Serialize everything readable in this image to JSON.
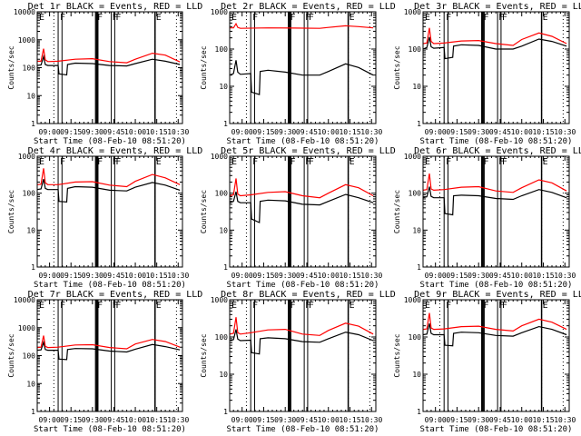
{
  "colors": {
    "events": "#000000",
    "lld": "#ff0000",
    "background": "#ffffff"
  },
  "chart_data": [
    {
      "type": "line",
      "detector": "1r",
      "title": "Det 1r BLACK = Events, RED = LLD",
      "xlabel": "Start Time (08-Feb-10 08:51:20)",
      "ylabel": "Counts/sec",
      "yscale": "log",
      "ylim": [
        1,
        10000
      ],
      "ytick_labels": [
        "1",
        "10",
        "100",
        "1000",
        "10000"
      ],
      "xlim_hours": [
        8.856,
        10.55
      ],
      "xtick_labels": [
        "09:00",
        "09:15",
        "09:30",
        "09:45",
        "10:00",
        "10:15",
        "10:30"
      ],
      "series": [
        {
          "name": "Events",
          "color": "black",
          "x_hours": [
            8.856,
            8.9,
            8.93,
            8.95,
            8.98,
            9.1,
            9.11,
            9.2,
            9.21,
            9.3,
            9.5,
            9.7,
            9.9,
            10.0,
            10.2,
            10.35,
            10.52
          ],
          "values": [
            120,
            125,
            250,
            130,
            120,
            120,
            60,
            55,
            130,
            145,
            140,
            120,
            115,
            140,
            200,
            170,
            130
          ]
        },
        {
          "name": "LLD",
          "color": "red",
          "x_hours": [
            8.856,
            8.9,
            8.93,
            8.95,
            8.98,
            9.1,
            9.3,
            9.5,
            9.7,
            9.9,
            10.0,
            10.2,
            10.35,
            10.52
          ],
          "values": [
            170,
            170,
            480,
            190,
            165,
            170,
            200,
            210,
            165,
            150,
            200,
            330,
            280,
            160
          ]
        }
      ]
    },
    {
      "type": "line",
      "detector": "2r",
      "title": "Det 2r BLACK = Events, RED = LLD",
      "xlabel": "Start Time (08-Feb-10 08:51:20)",
      "ylabel": "Counts/sec",
      "yscale": "log",
      "ylim": [
        1,
        1000
      ],
      "ytick_labels": [
        "1",
        "10",
        "100",
        "1000"
      ],
      "xlim_hours": [
        8.856,
        10.55
      ],
      "xtick_labels": [
        "09:00",
        "09:15",
        "09:30",
        "09:45",
        "10:00",
        "10:15",
        "10:30"
      ],
      "series": [
        {
          "name": "Events",
          "color": "black",
          "x_hours": [
            8.856,
            8.9,
            8.93,
            8.95,
            8.98,
            9.1,
            9.11,
            9.2,
            9.21,
            9.3,
            9.5,
            9.7,
            9.9,
            10.0,
            10.2,
            10.35,
            10.52
          ],
          "values": [
            20,
            22,
            50,
            24,
            21,
            22,
            7,
            6,
            25,
            27,
            24,
            20,
            20,
            25,
            40,
            32,
            20
          ]
        },
        {
          "name": "LLD",
          "color": "red",
          "x_hours": [
            8.856,
            8.9,
            8.93,
            8.95,
            8.98,
            9.3,
            9.6,
            9.9,
            10.0,
            10.2,
            10.35,
            10.52
          ],
          "values": [
            370,
            370,
            480,
            380,
            360,
            370,
            365,
            360,
            380,
            420,
            400,
            370
          ]
        }
      ]
    },
    {
      "type": "line",
      "detector": "3r",
      "title": "Det 3r BLACK = Events, RED = LLD",
      "xlabel": "Start Time (08-Feb-10 08:51:20)",
      "ylabel": "Counts/sec",
      "yscale": "log",
      "ylim": [
        1,
        1000
      ],
      "ytick_labels": [
        "1",
        "10",
        "100",
        "1000"
      ],
      "xlim_hours": [
        8.856,
        10.55
      ],
      "xtick_labels": [
        "09:00",
        "09:15",
        "09:30",
        "09:45",
        "10:00",
        "10:15",
        "10:30"
      ],
      "series": [
        {
          "name": "Events",
          "color": "black",
          "x_hours": [
            8.856,
            8.9,
            8.93,
            8.95,
            8.98,
            9.1,
            9.11,
            9.2,
            9.21,
            9.3,
            9.5,
            9.7,
            9.9,
            10.0,
            10.2,
            10.35,
            10.52
          ],
          "values": [
            100,
            110,
            210,
            115,
            105,
            110,
            55,
            60,
            120,
            130,
            125,
            100,
            100,
            120,
            185,
            160,
            120
          ]
        },
        {
          "name": "LLD",
          "color": "red",
          "x_hours": [
            8.856,
            8.9,
            8.93,
            8.95,
            8.98,
            9.1,
            9.3,
            9.5,
            9.7,
            9.9,
            10.0,
            10.2,
            10.35,
            10.52
          ],
          "values": [
            140,
            145,
            370,
            160,
            140,
            145,
            165,
            170,
            140,
            125,
            180,
            270,
            220,
            140
          ]
        }
      ]
    },
    {
      "type": "line",
      "detector": "4r",
      "title": "Det 4r BLACK = Events, RED = LLD",
      "xlabel": "Start Time (08-Feb-10 08:51:20)",
      "ylabel": "Counts/sec",
      "yscale": "log",
      "ylim": [
        1,
        1000
      ],
      "ytick_labels": [
        "1",
        "10",
        "100",
        "1000"
      ],
      "xlim_hours": [
        8.856,
        10.55
      ],
      "xtick_labels": [
        "09:00",
        "09:15",
        "09:30",
        "09:45",
        "10:00",
        "10:15",
        "10:30"
      ],
      "series": [
        {
          "name": "Events",
          "color": "black",
          "x_hours": [
            8.856,
            8.9,
            8.93,
            8.95,
            8.98,
            9.1,
            9.11,
            9.2,
            9.21,
            9.3,
            9.5,
            9.7,
            9.9,
            10.0,
            10.2,
            10.35,
            10.52
          ],
          "values": [
            125,
            130,
            240,
            135,
            125,
            125,
            60,
            58,
            135,
            150,
            145,
            120,
            115,
            145,
            195,
            165,
            120
          ]
        },
        {
          "name": "LLD",
          "color": "red",
          "x_hours": [
            8.856,
            8.9,
            8.93,
            8.95,
            8.98,
            9.1,
            9.3,
            9.5,
            9.7,
            9.9,
            10.0,
            10.2,
            10.35,
            10.52
          ],
          "values": [
            170,
            175,
            470,
            190,
            170,
            170,
            200,
            205,
            165,
            150,
            210,
            320,
            260,
            170
          ]
        }
      ]
    },
    {
      "type": "line",
      "detector": "5r",
      "title": "Det 5r BLACK = Events, RED = LLD",
      "xlabel": "Start Time (08-Feb-10 08:51:20)",
      "ylabel": "Counts/sec",
      "yscale": "log",
      "ylim": [
        1,
        1000
      ],
      "ytick_labels": [
        "1",
        "10",
        "100",
        "1000"
      ],
      "xlim_hours": [
        8.856,
        10.55
      ],
      "xtick_labels": [
        "09:00",
        "09:15",
        "09:30",
        "09:45",
        "10:00",
        "10:15",
        "10:30"
      ],
      "series": [
        {
          "name": "Events",
          "color": "black",
          "x_hours": [
            8.856,
            8.9,
            8.93,
            8.95,
            8.98,
            9.1,
            9.11,
            9.2,
            9.21,
            9.3,
            9.5,
            9.7,
            9.9,
            10.0,
            10.2,
            10.35,
            10.52
          ],
          "values": [
            55,
            60,
            110,
            60,
            55,
            55,
            20,
            16,
            60,
            65,
            62,
            50,
            48,
            60,
            92,
            75,
            55
          ]
        },
        {
          "name": "LLD",
          "color": "red",
          "x_hours": [
            8.856,
            8.9,
            8.93,
            8.95,
            8.98,
            9.1,
            9.3,
            9.5,
            9.7,
            9.9,
            10.0,
            10.2,
            10.35,
            10.52
          ],
          "values": [
            85,
            90,
            250,
            95,
            85,
            90,
            105,
            110,
            85,
            75,
            100,
            170,
            140,
            85
          ]
        }
      ]
    },
    {
      "type": "line",
      "detector": "6r",
      "title": "Det 6r BLACK = Events, RED = LLD",
      "xlabel": "Start Time (08-Feb-10 08:51:20)",
      "ylabel": "Counts/sec",
      "yscale": "log",
      "ylim": [
        1,
        1000
      ],
      "ytick_labels": [
        "1",
        "10",
        "100",
        "1000"
      ],
      "xlim_hours": [
        8.856,
        10.55
      ],
      "xtick_labels": [
        "09:00",
        "09:15",
        "09:30",
        "09:45",
        "10:00",
        "10:15",
        "10:30"
      ],
      "series": [
        {
          "name": "Events",
          "color": "black",
          "x_hours": [
            8.856,
            8.9,
            8.93,
            8.95,
            8.98,
            9.1,
            9.11,
            9.2,
            9.21,
            9.3,
            9.5,
            9.7,
            9.9,
            10.0,
            10.2,
            10.35,
            10.52
          ],
          "values": [
            75,
            80,
            150,
            82,
            75,
            75,
            28,
            26,
            85,
            88,
            85,
            72,
            68,
            85,
            125,
            105,
            75
          ]
        },
        {
          "name": "LLD",
          "color": "red",
          "x_hours": [
            8.856,
            8.9,
            8.93,
            8.95,
            8.98,
            9.1,
            9.3,
            9.5,
            9.7,
            9.9,
            10.0,
            10.2,
            10.35,
            10.52
          ],
          "values": [
            120,
            125,
            340,
            130,
            120,
            125,
            145,
            150,
            115,
            105,
            140,
            230,
            190,
            115
          ]
        }
      ]
    },
    {
      "type": "line",
      "detector": "7r",
      "title": "Det 7r BLACK = Events, RED = LLD",
      "xlabel": "Start Time (08-Feb-10 08:51:20)",
      "ylabel": "Counts/sec",
      "yscale": "log",
      "ylim": [
        1,
        10000
      ],
      "ytick_labels": [
        "1",
        "10",
        "100",
        "1000",
        "10000"
      ],
      "xlim_hours": [
        8.856,
        10.55
      ],
      "xtick_labels": [
        "09:00",
        "09:15",
        "09:30",
        "09:45",
        "10:00",
        "10:15",
        "10:30"
      ],
      "series": [
        {
          "name": "Events",
          "color": "black",
          "x_hours": [
            8.856,
            8.9,
            8.93,
            8.95,
            8.98,
            9.1,
            9.11,
            9.2,
            9.21,
            9.3,
            9.5,
            9.7,
            9.9,
            10.0,
            10.2,
            10.35,
            10.52
          ],
          "values": [
            155,
            160,
            300,
            165,
            155,
            155,
            75,
            72,
            165,
            180,
            175,
            145,
            135,
            170,
            250,
            210,
            160
          ]
        },
        {
          "name": "LLD",
          "color": "red",
          "x_hours": [
            8.856,
            8.9,
            8.93,
            8.95,
            8.98,
            9.1,
            9.3,
            9.5,
            9.7,
            9.9,
            10.0,
            10.2,
            10.35,
            10.52
          ],
          "values": [
            195,
            200,
            520,
            215,
            195,
            200,
            240,
            245,
            195,
            175,
            260,
            380,
            320,
            200
          ]
        }
      ]
    },
    {
      "type": "line",
      "detector": "8r",
      "title": "Det 8r BLACK = Events, RED = LLD",
      "xlabel": "Start Time (08-Feb-10 08:51:20)",
      "ylabel": "Counts/sec",
      "yscale": "log",
      "ylim": [
        1,
        1000
      ],
      "ytick_labels": [
        "1",
        "10",
        "100",
        "1000"
      ],
      "xlim_hours": [
        8.856,
        10.55
      ],
      "xtick_labels": [
        "09:00",
        "09:15",
        "09:30",
        "09:45",
        "10:00",
        "10:15",
        "10:30"
      ],
      "series": [
        {
          "name": "Events",
          "color": "black",
          "x_hours": [
            8.856,
            8.9,
            8.93,
            8.95,
            8.98,
            9.1,
            9.11,
            9.2,
            9.21,
            9.3,
            9.5,
            9.7,
            9.9,
            10.0,
            10.2,
            10.35,
            10.52
          ],
          "values": [
            80,
            85,
            160,
            88,
            80,
            82,
            38,
            35,
            90,
            95,
            90,
            75,
            72,
            90,
            135,
            115,
            80
          ]
        },
        {
          "name": "LLD",
          "color": "red",
          "x_hours": [
            8.856,
            8.9,
            8.93,
            8.95,
            8.98,
            9.1,
            9.3,
            9.5,
            9.7,
            9.9,
            10.0,
            10.2,
            10.35,
            10.52
          ],
          "values": [
            120,
            125,
            340,
            130,
            120,
            130,
            155,
            160,
            120,
            110,
            150,
            235,
            195,
            120
          ]
        }
      ]
    },
    {
      "type": "line",
      "detector": "9r",
      "title": "Det 9r BLACK = Events, RED = LLD",
      "xlabel": "Start Time (08-Feb-10 08:51:20)",
      "ylabel": "Counts/sec",
      "yscale": "log",
      "ylim": [
        1,
        1000
      ],
      "ytick_labels": [
        "1",
        "10",
        "100",
        "1000"
      ],
      "xlim_hours": [
        8.856,
        10.55
      ],
      "xtick_labels": [
        "09:00",
        "09:15",
        "09:30",
        "09:45",
        "10:00",
        "10:15",
        "10:30"
      ],
      "series": [
        {
          "name": "Events",
          "color": "black",
          "x_hours": [
            8.856,
            8.9,
            8.93,
            8.95,
            8.98,
            9.1,
            9.11,
            9.2,
            9.21,
            9.3,
            9.5,
            9.7,
            9.9,
            10.0,
            10.2,
            10.35,
            10.52
          ],
          "values": [
            115,
            120,
            230,
            125,
            115,
            115,
            60,
            58,
            125,
            135,
            130,
            110,
            105,
            130,
            190,
            160,
            115
          ]
        },
        {
          "name": "LLD",
          "color": "red",
          "x_hours": [
            8.856,
            8.9,
            8.93,
            8.95,
            8.98,
            9.1,
            9.3,
            9.5,
            9.7,
            9.9,
            10.0,
            10.2,
            10.35,
            10.52
          ],
          "values": [
            160,
            165,
            440,
            175,
            160,
            165,
            190,
            195,
            160,
            145,
            200,
            300,
            250,
            160
          ]
        }
      ]
    }
  ],
  "markers": {
    "dotted_lines_hours": [
      9.05,
      10.23,
      10.48
    ],
    "solid_lines_hours": [
      9.1,
      9.145,
      9.535,
      9.545,
      9.555,
      9.565,
      9.72,
      9.76
    ],
    "thick_line_hours": 10.23,
    "flags": [
      {
        "label": "E",
        "x_hours": 8.86
      },
      {
        "label": "F",
        "x_hours": 9.11
      },
      {
        "label": "F",
        "x_hours": 9.545
      },
      {
        "label": "F",
        "x_hours": 9.72
      },
      {
        "label": "F",
        "x_hours": 9.76
      },
      {
        "label": "E",
        "x_hours": 10.23
      }
    ]
  }
}
